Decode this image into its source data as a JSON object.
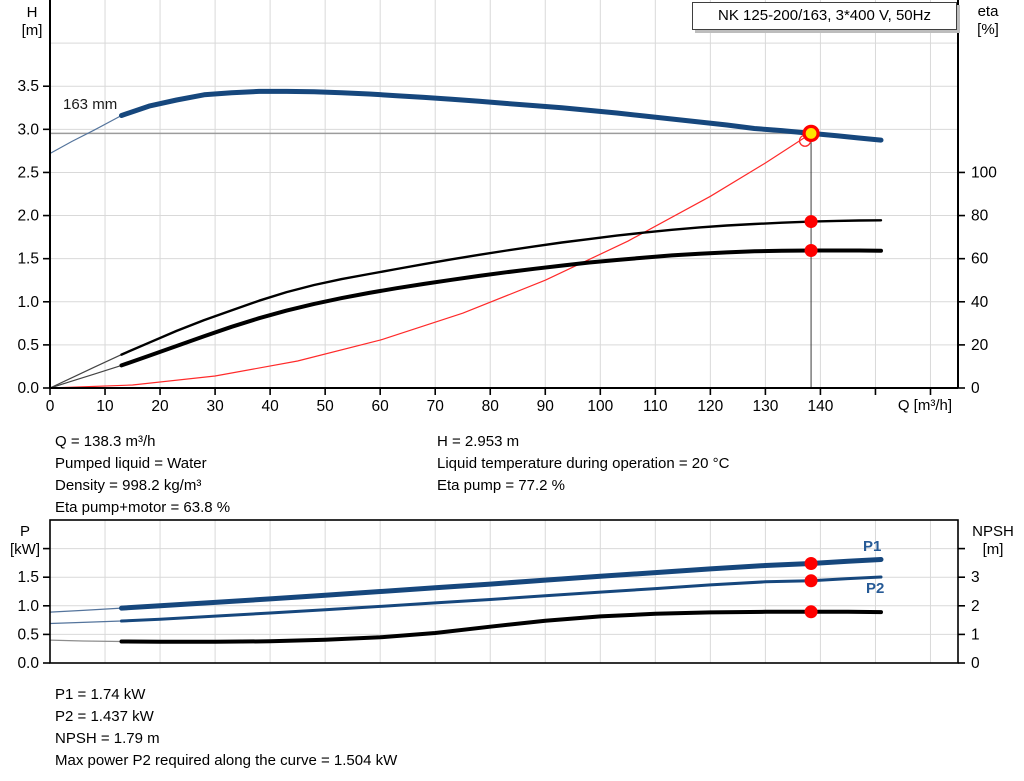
{
  "header": {
    "title": "NK 125-200/163, 3*400 V, 50Hz"
  },
  "colors": {
    "curve_blue": "#16477d",
    "curve_blue_thin": "#54749c",
    "curve_black": "#000000",
    "curve_black_thin": "#444444",
    "curve_gray_thin": "#8d8d8d",
    "system_red": "#ff2a2a",
    "marker_red": "#ff0000",
    "marker_yellow": "#ffe400",
    "grid": "#d9d9d9",
    "axis": "#000000",
    "crosshair_gray": "#9c9c9c",
    "crosshair_dark": "#3a3a3a",
    "label_blue": "#265a96"
  },
  "axis_labels": {
    "top_left_1": "H",
    "top_left_2": "[m]",
    "top_right_1": "eta",
    "top_right_2": "[%]",
    "x": "Q [m³/h]",
    "bottom_left_1": "P",
    "bottom_left_2": "[kW]",
    "bottom_right_1": "NPSH",
    "bottom_right_2": "[m]"
  },
  "curve_labels": {
    "impeller": "163 mm",
    "p1": "P1",
    "p2": "P2"
  },
  "info_top_left": [
    "Q = 138.3 m³/h",
    "Pumped liquid = Water",
    "Density = 998.2 kg/m³",
    "Eta pump+motor = 63.8 %"
  ],
  "info_top_right": [
    "H = 2.953 m",
    "Liquid temperature during operation = 20 °C",
    "Eta pump = 77.2 %"
  ],
  "info_bottom": [
    "P1 = 1.74 kW",
    "P2 = 1.437 kW",
    "NPSH = 1.79 m",
    "Max power P2 required along the curve = 1.504 kW"
  ],
  "chart_data": [
    {
      "type": "line",
      "title": "NK 125-200/163, 3*400 V, 50Hz",
      "xlabel": "Q [m³/h]",
      "ylabel_left": "H [m]",
      "ylabel_right": "eta [%]",
      "xlim": [
        0,
        165
      ],
      "ylim_left": [
        0,
        4.5
      ],
      "ylim_right": [
        0,
        180
      ],
      "x_ticks": [
        0,
        10,
        20,
        30,
        40,
        50,
        60,
        70,
        80,
        90,
        100,
        110,
        120,
        130,
        140,
        150,
        160
      ],
      "x_label_max": 140,
      "show_x_ticks": true,
      "frame": false,
      "left_decimals": 1,
      "right_decimals": 0,
      "y_ticks_left": [
        0,
        0.5,
        1,
        1.5,
        2,
        2.5,
        3,
        3.5
      ],
      "y_ticks_left_extra": [],
      "grid_y_left": [
        0.5,
        1,
        1.5,
        2,
        2.5,
        3,
        3.5,
        4
      ],
      "y_ticks_right": [
        0,
        20,
        40,
        60,
        80,
        100
      ],
      "y_ticks_right_extra": [],
      "series": [
        {
          "name": "system-curve",
          "axis": "left",
          "color": "system_red",
          "width": 1.2,
          "points": [
            [
              0,
              0
            ],
            [
              15,
              0.035
            ],
            [
              30,
              0.139
            ],
            [
              45,
              0.313
            ],
            [
              60,
              0.556
            ],
            [
              75,
              0.868
            ],
            [
              90,
              1.25
            ],
            [
              105,
              1.702
            ],
            [
              120,
              2.223
            ],
            [
              130,
              2.609
            ],
            [
              138.3,
              2.953
            ]
          ]
        },
        {
          "name": "eta-pump-curve",
          "axis": "right",
          "color": "curve_black",
          "thin_color": "curve_black_thin",
          "width": 2.4,
          "thin_until": 13,
          "points": [
            [
              0,
              0
            ],
            [
              4,
              4.8
            ],
            [
              8,
              9.6
            ],
            [
              13,
              15.5
            ],
            [
              18,
              21
            ],
            [
              23,
              26.5
            ],
            [
              28,
              31.5
            ],
            [
              33,
              36
            ],
            [
              38,
              40.5
            ],
            [
              43,
              44.5
            ],
            [
              48,
              47.8
            ],
            [
              53,
              50.5
            ],
            [
              58,
              52.9
            ],
            [
              63,
              55.2
            ],
            [
              68,
              57.5
            ],
            [
              73,
              59.7
            ],
            [
              78,
              61.8
            ],
            [
              83,
              63.8
            ],
            [
              88,
              65.7
            ],
            [
              93,
              67.5
            ],
            [
              98,
              69.1
            ],
            [
              103,
              70.7
            ],
            [
              108,
              72.1
            ],
            [
              113,
              73.4
            ],
            [
              118,
              74.5
            ],
            [
              123,
              75.4
            ],
            [
              128,
              76.1
            ],
            [
              133,
              76.7
            ],
            [
              138.3,
              77.2
            ],
            [
              143,
              77.5
            ],
            [
              147,
              77.7
            ],
            [
              151,
              77.8
            ]
          ]
        },
        {
          "name": "eta-pump-motor-curve",
          "axis": "right",
          "color": "curve_black",
          "thin_color": "curve_black_thin",
          "width": 4,
          "thin_until": 13,
          "points": [
            [
              0,
              0
            ],
            [
              4,
              3.2
            ],
            [
              8,
              6.4
            ],
            [
              13,
              10.5
            ],
            [
              18,
              15
            ],
            [
              23,
              19.5
            ],
            [
              28,
              24
            ],
            [
              33,
              28.4
            ],
            [
              38,
              32.4
            ],
            [
              43,
              35.9
            ],
            [
              48,
              39
            ],
            [
              53,
              41.7
            ],
            [
              58,
              44.1
            ],
            [
              63,
              46.3
            ],
            [
              68,
              48.3
            ],
            [
              73,
              50.2
            ],
            [
              78,
              52
            ],
            [
              83,
              53.7
            ],
            [
              88,
              55.3
            ],
            [
              93,
              56.8
            ],
            [
              98,
              58.2
            ],
            [
              103,
              59.4
            ],
            [
              108,
              60.5
            ],
            [
              113,
              61.5
            ],
            [
              118,
              62.3
            ],
            [
              123,
              62.9
            ],
            [
              128,
              63.4
            ],
            [
              133,
              63.7
            ],
            [
              138.3,
              63.8
            ],
            [
              143,
              63.8
            ],
            [
              147,
              63.8
            ],
            [
              151,
              63.7
            ]
          ]
        },
        {
          "name": "head-curve-163mm",
          "axis": "left",
          "color": "curve_blue",
          "thin_color": "curve_blue_thin",
          "width": 5,
          "thin_until": 13,
          "points": [
            [
              0,
              2.72
            ],
            [
              4,
              2.86
            ],
            [
              8,
              2.99
            ],
            [
              13,
              3.16
            ],
            [
              18,
              3.27
            ],
            [
              23,
              3.34
            ],
            [
              28,
              3.4
            ],
            [
              33,
              3.425
            ],
            [
              38,
              3.44
            ],
            [
              43,
              3.44
            ],
            [
              48,
              3.435
            ],
            [
              53,
              3.425
            ],
            [
              58,
              3.41
            ],
            [
              63,
              3.39
            ],
            [
              68,
              3.37
            ],
            [
              73,
              3.35
            ],
            [
              78,
              3.325
            ],
            [
              83,
              3.3
            ],
            [
              88,
              3.275
            ],
            [
              93,
              3.25
            ],
            [
              98,
              3.22
            ],
            [
              103,
              3.19
            ],
            [
              108,
              3.155
            ],
            [
              113,
              3.12
            ],
            [
              118,
              3.085
            ],
            [
              123,
              3.05
            ],
            [
              128,
              3.01
            ],
            [
              133,
              2.985
            ],
            [
              138.3,
              2.953
            ],
            [
              143,
              2.925
            ],
            [
              147,
              2.9
            ],
            [
              151,
              2.875
            ]
          ]
        }
      ],
      "crosshair": {
        "vline_q": 138.3,
        "vline_top_v": 2.953,
        "hline_v": 2.953,
        "hline_q_end": 137.2
      },
      "markers": [
        {
          "name": "requested-duty-circle",
          "axis": "left",
          "q": 137.2,
          "v": 2.868,
          "style": "open-red"
        },
        {
          "name": "eta-pump-duty-dot",
          "axis": "right",
          "q": 138.3,
          "v": 77.2,
          "style": "red-dot"
        },
        {
          "name": "eta-pump-motor-duty-dot",
          "axis": "right",
          "q": 138.3,
          "v": 63.8,
          "style": "red-dot"
        },
        {
          "name": "duty-point-marker",
          "axis": "left",
          "q": 138.3,
          "v": 2.953,
          "style": "duty"
        }
      ],
      "duty_point": {
        "Q": 138.3,
        "H": 2.953,
        "eta_pump": 77.2,
        "eta_pump_motor": 63.8
      }
    },
    {
      "type": "line",
      "title": "",
      "xlabel": "",
      "ylabel_left": "P [kW]",
      "ylabel_right": "NPSH [m]",
      "xlim": [
        0,
        165
      ],
      "ylim_left": [
        0,
        2.5
      ],
      "ylim_right": [
        0,
        5
      ],
      "x_ticks": [
        10,
        20,
        30,
        40,
        50,
        60,
        70,
        80,
        90,
        100,
        110,
        120,
        130,
        140,
        150,
        160
      ],
      "x_label_max": -1,
      "show_x_ticks": false,
      "frame": true,
      "left_decimals": 1,
      "right_decimals": 0,
      "y_ticks_left": [
        0,
        0.5,
        1,
        1.5
      ],
      "y_ticks_left_extra": [
        2
      ],
      "grid_y_left": [
        0.5,
        1,
        1.5,
        2
      ],
      "y_ticks_right": [
        0,
        1,
        2,
        3
      ],
      "y_ticks_right_extra": [
        4
      ],
      "series": [
        {
          "name": "p1-curve",
          "axis": "left",
          "color": "curve_blue",
          "thin_color": "curve_blue_thin",
          "width": 5,
          "thin_until": 13,
          "points": [
            [
              0,
              0.89
            ],
            [
              6,
              0.92
            ],
            [
              13,
              0.96
            ],
            [
              20,
              1.0
            ],
            [
              30,
              1.06
            ],
            [
              40,
              1.12
            ],
            [
              50,
              1.185
            ],
            [
              60,
              1.25
            ],
            [
              70,
              1.315
            ],
            [
              80,
              1.38
            ],
            [
              90,
              1.45
            ],
            [
              100,
              1.515
            ],
            [
              110,
              1.58
            ],
            [
              120,
              1.645
            ],
            [
              130,
              1.705
            ],
            [
              138.3,
              1.74
            ],
            [
              145,
              1.78
            ],
            [
              151,
              1.81
            ]
          ]
        },
        {
          "name": "p2-curve",
          "axis": "left",
          "color": "curve_blue",
          "thin_color": "curve_blue_thin",
          "width": 3,
          "thin_until": 13,
          "points": [
            [
              0,
              0.69
            ],
            [
              6,
              0.71
            ],
            [
              13,
              0.735
            ],
            [
              20,
              0.765
            ],
            [
              30,
              0.82
            ],
            [
              40,
              0.875
            ],
            [
              50,
              0.93
            ],
            [
              60,
              0.99
            ],
            [
              70,
              1.05
            ],
            [
              80,
              1.11
            ],
            [
              90,
              1.175
            ],
            [
              100,
              1.24
            ],
            [
              110,
              1.3
            ],
            [
              120,
              1.365
            ],
            [
              130,
              1.42
            ],
            [
              138.3,
              1.437
            ],
            [
              145,
              1.475
            ],
            [
              151,
              1.504
            ]
          ]
        },
        {
          "name": "npsh-curve",
          "axis": "right",
          "color": "curve_black",
          "thin_color": "curve_gray_thin",
          "width": 4,
          "thin_until": 13,
          "points": [
            [
              0,
              0.8
            ],
            [
              6,
              0.77
            ],
            [
              13,
              0.75
            ],
            [
              20,
              0.74
            ],
            [
              30,
              0.74
            ],
            [
              40,
              0.76
            ],
            [
              50,
              0.81
            ],
            [
              60,
              0.9
            ],
            [
              70,
              1.05
            ],
            [
              80,
              1.27
            ],
            [
              90,
              1.48
            ],
            [
              100,
              1.63
            ],
            [
              110,
              1.72
            ],
            [
              120,
              1.77
            ],
            [
              130,
              1.79
            ],
            [
              138.3,
              1.79
            ],
            [
              145,
              1.79
            ],
            [
              151,
              1.78
            ]
          ]
        }
      ],
      "crosshair": null,
      "markers": [
        {
          "name": "p1-duty-dot",
          "axis": "left",
          "q": 138.3,
          "v": 1.74,
          "style": "red-dot"
        },
        {
          "name": "p2-duty-dot",
          "axis": "left",
          "q": 138.3,
          "v": 1.437,
          "style": "red-dot"
        },
        {
          "name": "npsh-duty-dot",
          "axis": "right",
          "q": 138.3,
          "v": 1.79,
          "style": "red-dot"
        }
      ],
      "duty_point": {
        "Q": 138.3,
        "P1": 1.74,
        "P2": 1.437,
        "NPSH": 1.79
      }
    }
  ]
}
